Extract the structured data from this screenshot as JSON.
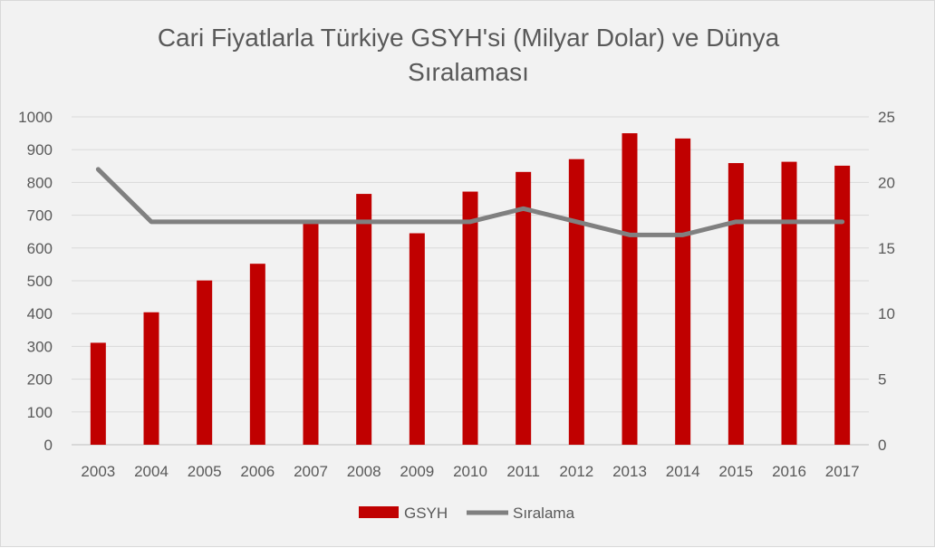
{
  "chart_data": {
    "type": "bar+line",
    "title": "Cari Fiyatlarla Türkiye GSYH'si (Milyar Dolar) ve Dünya Sıralaması",
    "title_lines": [
      "Cari Fiyatlarla Türkiye GSYH'si (Milyar Dolar) ve Dünya",
      "Sıralaması"
    ],
    "categories": [
      "2003",
      "2004",
      "2005",
      "2006",
      "2007",
      "2008",
      "2009",
      "2010",
      "2011",
      "2012",
      "2013",
      "2014",
      "2015",
      "2016",
      "2017"
    ],
    "series": [
      {
        "name": "GSYH",
        "type": "bar",
        "axis": "left",
        "color": "#c00000",
        "values": [
          311,
          404,
          501,
          552,
          681,
          765,
          645,
          772,
          832,
          871,
          950,
          934,
          859,
          863,
          851
        ]
      },
      {
        "name": "Sıralama",
        "type": "line",
        "axis": "right",
        "color": "#808080",
        "values": [
          21,
          17,
          17,
          17,
          17,
          17,
          17,
          17,
          18,
          17,
          16,
          16,
          17,
          17,
          17
        ]
      }
    ],
    "y_left": {
      "min": 0,
      "max": 1000,
      "ticks": [
        0,
        100,
        200,
        300,
        400,
        500,
        600,
        700,
        800,
        900,
        1000
      ]
    },
    "y_right": {
      "min": 0,
      "max": 25,
      "ticks": [
        0,
        5,
        10,
        15,
        20,
        25
      ]
    },
    "grid": true,
    "legend_position": "bottom"
  }
}
